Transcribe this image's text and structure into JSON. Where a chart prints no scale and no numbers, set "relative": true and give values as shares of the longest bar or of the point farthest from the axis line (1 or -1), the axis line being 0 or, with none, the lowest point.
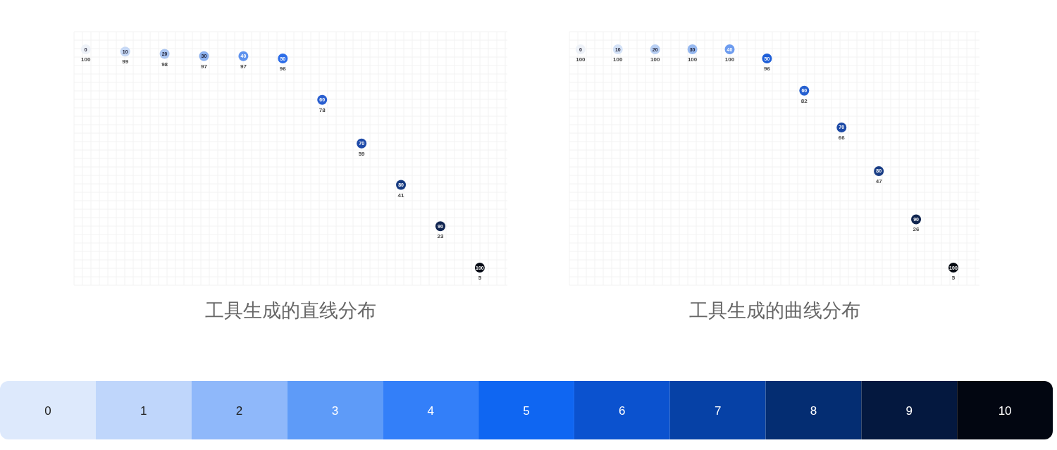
{
  "chart_data": [
    {
      "type": "scatter",
      "title": "工具生成的直线分布",
      "categories": [
        "0",
        "10",
        "20",
        "30",
        "40",
        "50",
        "60",
        "70",
        "80",
        "90",
        "100"
      ],
      "values": [
        100,
        99,
        98,
        97,
        97,
        96,
        78,
        59,
        41,
        23,
        5
      ],
      "colors": [
        "#eef2f8",
        "#c6d8f5",
        "#a9c4f0",
        "#8bb0ee",
        "#5f93ee",
        "#2e6ee8",
        "#2a5fd0",
        "#1e4aa8",
        "#163a80",
        "#0f2450",
        "#050a15"
      ],
      "grid": true,
      "data_labels": true,
      "marker": "circle"
    },
    {
      "type": "scatter",
      "title": "工具生成的曲线分布",
      "categories": [
        "0",
        "10",
        "20",
        "30",
        "40",
        "50",
        "60",
        "70",
        "80",
        "90",
        "100"
      ],
      "values": [
        100,
        100,
        100,
        100,
        100,
        96,
        82,
        66,
        47,
        26,
        5
      ],
      "colors": [
        "#eef2f8",
        "#d4e2f7",
        "#b8cff3",
        "#97b9f0",
        "#6d9cef",
        "#1f5fd8",
        "#2660d0",
        "#1d4aa6",
        "#193d85",
        "#10254f",
        "#050a12"
      ],
      "grid": true,
      "data_labels": true,
      "marker": "circle"
    },
    {
      "type": "bar",
      "relative": true,
      "categories": [
        "0",
        "1",
        "2",
        "3",
        "4",
        "5",
        "6",
        "7",
        "8",
        "9",
        "10"
      ],
      "values": [
        1,
        1,
        1,
        1,
        1,
        1,
        1,
        1,
        1,
        1,
        1
      ],
      "colors": [
        "#dde9fc",
        "#bfd6fb",
        "#8fb8fa",
        "#5e9bf8",
        "#337ff9",
        "#0f66f2",
        "#0b52cf",
        "#0641a6",
        "#042d72",
        "#04183f",
        "#020611"
      ]
    }
  ]
}
